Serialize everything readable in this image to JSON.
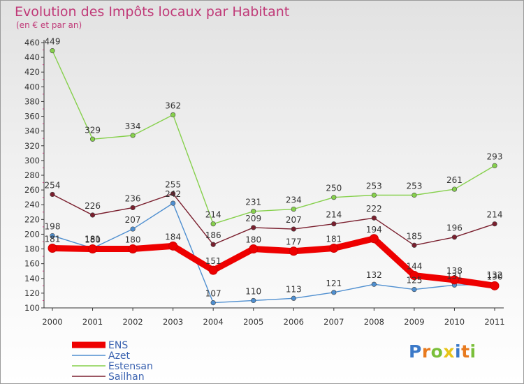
{
  "chart_data": {
    "type": "line",
    "title": "Evolution des Impôts locaux par Habitant",
    "subtitle": "(en € et par an)",
    "xlabel": "",
    "ylabel": "",
    "ylim": [
      100,
      460
    ],
    "y_ticks": [
      100,
      120,
      140,
      160,
      180,
      200,
      220,
      240,
      260,
      280,
      300,
      320,
      340,
      360,
      380,
      400,
      420,
      440,
      460
    ],
    "x": [
      "2000",
      "2001",
      "2002",
      "2003",
      "2004",
      "2005",
      "2006",
      "2007",
      "2008",
      "2009",
      "2010",
      "2011"
    ],
    "legend_position": "bottom-left",
    "series": [
      {
        "name": "Azet",
        "color": "#4f8fd0",
        "values": [
          198,
          181,
          207,
          242,
          107,
          110,
          113,
          121,
          132,
          125,
          131,
          132
        ]
      },
      {
        "name": "Estensan",
        "color": "#86d04c",
        "values": [
          449,
          329,
          334,
          362,
          214,
          231,
          234,
          250,
          253,
          253,
          261,
          293
        ]
      },
      {
        "name": "Sailhan",
        "color": "#7a1f2e",
        "values": [
          254,
          226,
          236,
          255,
          186,
          209,
          207,
          214,
          222,
          185,
          196,
          214
        ]
      },
      {
        "name": "ENS",
        "color": "#ee0000",
        "values": [
          181,
          180,
          180,
          184,
          151,
          180,
          177,
          181,
          194,
          144,
          138,
          130
        ]
      }
    ],
    "legend": [
      "ENS",
      "Azet",
      "Estensan",
      "Sailhan"
    ]
  },
  "logo": {
    "text": "Proxiti",
    "letters": [
      "P",
      "r",
      "o",
      "x",
      "i",
      "t",
      "i"
    ],
    "colors": [
      "#3b79c8",
      "#e87a1e",
      "#7abf3a",
      "#e8c419",
      "#3b79c8",
      "#e87a1e",
      "#7abf3a"
    ]
  }
}
